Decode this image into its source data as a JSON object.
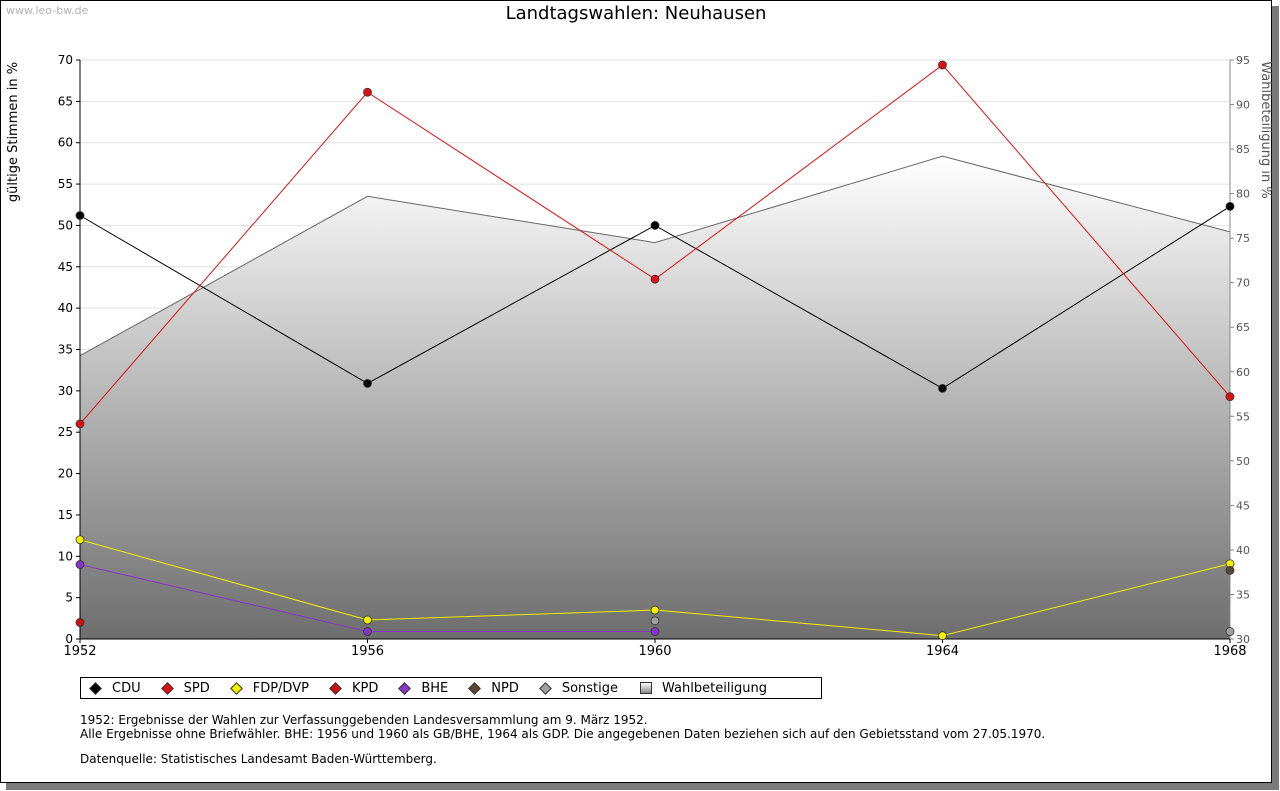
{
  "watermark": "www.leo-bw.de",
  "title": "Landtagswahlen: Neuhausen",
  "notes": [
    "1952: Ergebnisse der Wahlen zur Verfassunggebenden Landesversammlung am 9. März 1952.",
    "Alle Ergebnisse ohne Briefwähler. BHE: 1956 und 1960 als GB/BHE, 1964 als GDP. Die angegebenen Daten beziehen sich auf den Gebietsstand vom 27.05.1970."
  ],
  "source": "Datenquelle: Statistisches Landesamt Baden-Württemberg.",
  "chart_data": {
    "type": "line",
    "x": [
      1952,
      1956,
      1960,
      1964,
      1968
    ],
    "ylabel": "gültige Stimmen in %",
    "y2label": "Wahlbeteiligung in %",
    "ylim": [
      0,
      70
    ],
    "y2lim": [
      30,
      95
    ],
    "yticks": [
      0,
      5,
      10,
      15,
      20,
      25,
      30,
      35,
      40,
      45,
      50,
      55,
      60,
      65,
      70
    ],
    "y2ticks": [
      30,
      35,
      40,
      45,
      50,
      55,
      60,
      65,
      70,
      75,
      80,
      85,
      90,
      95
    ],
    "grid": true,
    "legend_position": "bottom",
    "series": [
      {
        "name": "CDU",
        "color": "#000000",
        "values": [
          51.2,
          30.9,
          50.0,
          30.3,
          52.3
        ]
      },
      {
        "name": "SPD",
        "color": "#dd1111",
        "values": [
          26.0,
          66.1,
          43.5,
          69.4,
          29.3
        ]
      },
      {
        "name": "FDP/DVP",
        "color": "#f0f000",
        "values": [
          12.0,
          2.3,
          3.5,
          0.4,
          9.1
        ]
      },
      {
        "name": "KPD",
        "color": "#cc1111",
        "values": [
          2.0,
          null,
          null,
          null,
          null
        ]
      },
      {
        "name": "BHE",
        "color": "#8833cc",
        "values": [
          9.0,
          0.9,
          0.9,
          null,
          null
        ]
      },
      {
        "name": "NPD",
        "color": "#5a4632",
        "values": [
          null,
          null,
          null,
          null,
          8.3
        ]
      },
      {
        "name": "Sonstige",
        "color": "#a0a0a0",
        "values": [
          null,
          null,
          2.2,
          null,
          0.9
        ]
      }
    ],
    "turnout": {
      "name": "Wahlbeteiligung",
      "values": [
        61.8,
        79.7,
        74.5,
        84.2,
        75.7
      ]
    }
  }
}
